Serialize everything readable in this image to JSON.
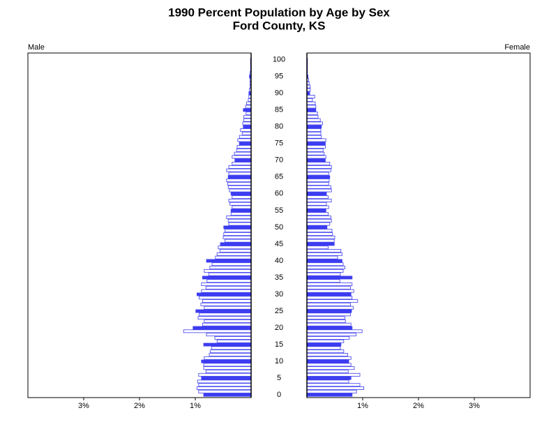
{
  "chart_data": {
    "type": "pyramid",
    "title": "1990 Percent Population by Age by Sex",
    "subtitle": "Ford County, KS",
    "categories": [
      0,
      1,
      2,
      3,
      4,
      5,
      6,
      7,
      8,
      9,
      10,
      11,
      12,
      13,
      14,
      15,
      16,
      17,
      18,
      19,
      20,
      21,
      22,
      23,
      24,
      25,
      26,
      27,
      28,
      29,
      30,
      31,
      32,
      33,
      34,
      35,
      36,
      37,
      38,
      39,
      40,
      41,
      42,
      43,
      44,
      45,
      46,
      47,
      48,
      49,
      50,
      51,
      52,
      53,
      54,
      55,
      56,
      57,
      58,
      59,
      60,
      61,
      62,
      63,
      64,
      65,
      66,
      67,
      68,
      69,
      70,
      71,
      72,
      73,
      74,
      75,
      76,
      77,
      78,
      79,
      80,
      81,
      82,
      83,
      84,
      85,
      86,
      87,
      88,
      89,
      90,
      91,
      92,
      93,
      94,
      95,
      96,
      97,
      98,
      99,
      100
    ],
    "series": [
      {
        "name": "Male",
        "color": "#3c3cf0",
        "values": [
          0.85,
          0.94,
          0.97,
          0.94,
          0.96,
          0.89,
          0.94,
          0.81,
          0.85,
          0.85,
          0.89,
          0.84,
          0.75,
          0.73,
          0.71,
          0.85,
          0.61,
          0.65,
          0.8,
          1.21,
          1.04,
          0.87,
          0.84,
          0.95,
          0.93,
          0.99,
          0.84,
          0.9,
          0.87,
          0.93,
          0.97,
          0.89,
          0.81,
          0.89,
          0.79,
          0.87,
          0.76,
          0.84,
          0.74,
          0.7,
          0.8,
          0.64,
          0.61,
          0.56,
          0.59,
          0.55,
          0.47,
          0.5,
          0.49,
          0.47,
          0.49,
          0.4,
          0.41,
          0.44,
          0.36,
          0.36,
          0.34,
          0.38,
          0.4,
          0.34,
          0.36,
          0.39,
          0.41,
          0.42,
          0.44,
          0.41,
          0.4,
          0.44,
          0.4,
          0.34,
          0.29,
          0.34,
          0.3,
          0.26,
          0.25,
          0.21,
          0.24,
          0.21,
          0.16,
          0.19,
          0.14,
          0.15,
          0.13,
          0.13,
          0.09,
          0.14,
          0.1,
          0.08,
          0.05,
          0.04,
          0.04,
          0.03,
          0.02,
          0.02,
          0.02,
          0.03,
          0.02,
          0.01,
          0.01,
          0.01,
          0.01
        ]
      },
      {
        "name": "Female",
        "color": "#3c3cf0",
        "values": [
          0.81,
          0.89,
          1.02,
          0.95,
          0.75,
          0.79,
          0.95,
          0.74,
          0.85,
          0.79,
          0.75,
          0.79,
          0.73,
          0.66,
          0.6,
          0.61,
          0.66,
          0.76,
          0.88,
          0.99,
          0.81,
          0.79,
          0.69,
          0.68,
          0.78,
          0.8,
          0.83,
          0.78,
          0.91,
          0.81,
          0.79,
          0.84,
          0.78,
          0.81,
          0.59,
          0.81,
          0.6,
          0.65,
          0.68,
          0.65,
          0.63,
          0.55,
          0.63,
          0.61,
          0.38,
          0.49,
          0.49,
          0.5,
          0.46,
          0.45,
          0.36,
          0.41,
          0.44,
          0.43,
          0.38,
          0.34,
          0.39,
          0.35,
          0.44,
          0.38,
          0.35,
          0.44,
          0.43,
          0.39,
          0.4,
          0.41,
          0.39,
          0.43,
          0.44,
          0.41,
          0.33,
          0.34,
          0.31,
          0.29,
          0.33,
          0.33,
          0.34,
          0.26,
          0.25,
          0.25,
          0.26,
          0.28,
          0.24,
          0.2,
          0.19,
          0.16,
          0.16,
          0.15,
          0.1,
          0.14,
          0.05,
          0.06,
          0.06,
          0.04,
          0.03,
          0.02,
          0.01,
          0.01,
          0.01,
          0.01,
          0.01
        ]
      }
    ],
    "xlim": [
      0,
      4
    ],
    "xticks": [
      {
        "value": 1,
        "label": "1%"
      },
      {
        "value": 2,
        "label": "2%"
      },
      {
        "value": 3,
        "label": "3%"
      }
    ],
    "ylim": [
      -0.8,
      102
    ],
    "yticks": [
      0,
      5,
      10,
      15,
      20,
      25,
      30,
      35,
      40,
      45,
      50,
      55,
      60,
      65,
      70,
      75,
      80,
      85,
      90,
      95,
      100
    ]
  }
}
